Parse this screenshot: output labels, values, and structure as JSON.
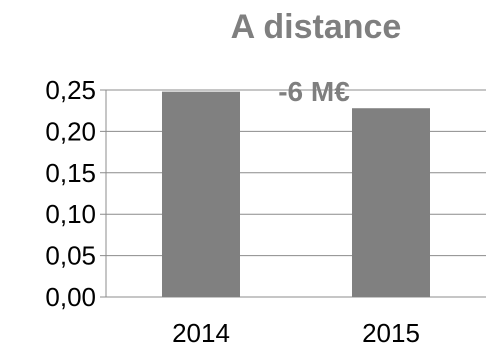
{
  "chart_data": {
    "type": "bar",
    "title": "A distance",
    "annotation": "-6 M€",
    "xlabel": "",
    "ylabel": "",
    "categories": [
      "2014",
      "2015"
    ],
    "values": [
      0.248,
      0.228
    ],
    "ylim": [
      0,
      0.25
    ],
    "yticks": [
      "0,00",
      "0,05",
      "0,10",
      "0,15",
      "0,20",
      "0,25"
    ],
    "grid": true,
    "legend": "none",
    "bar_color": "#808080"
  }
}
